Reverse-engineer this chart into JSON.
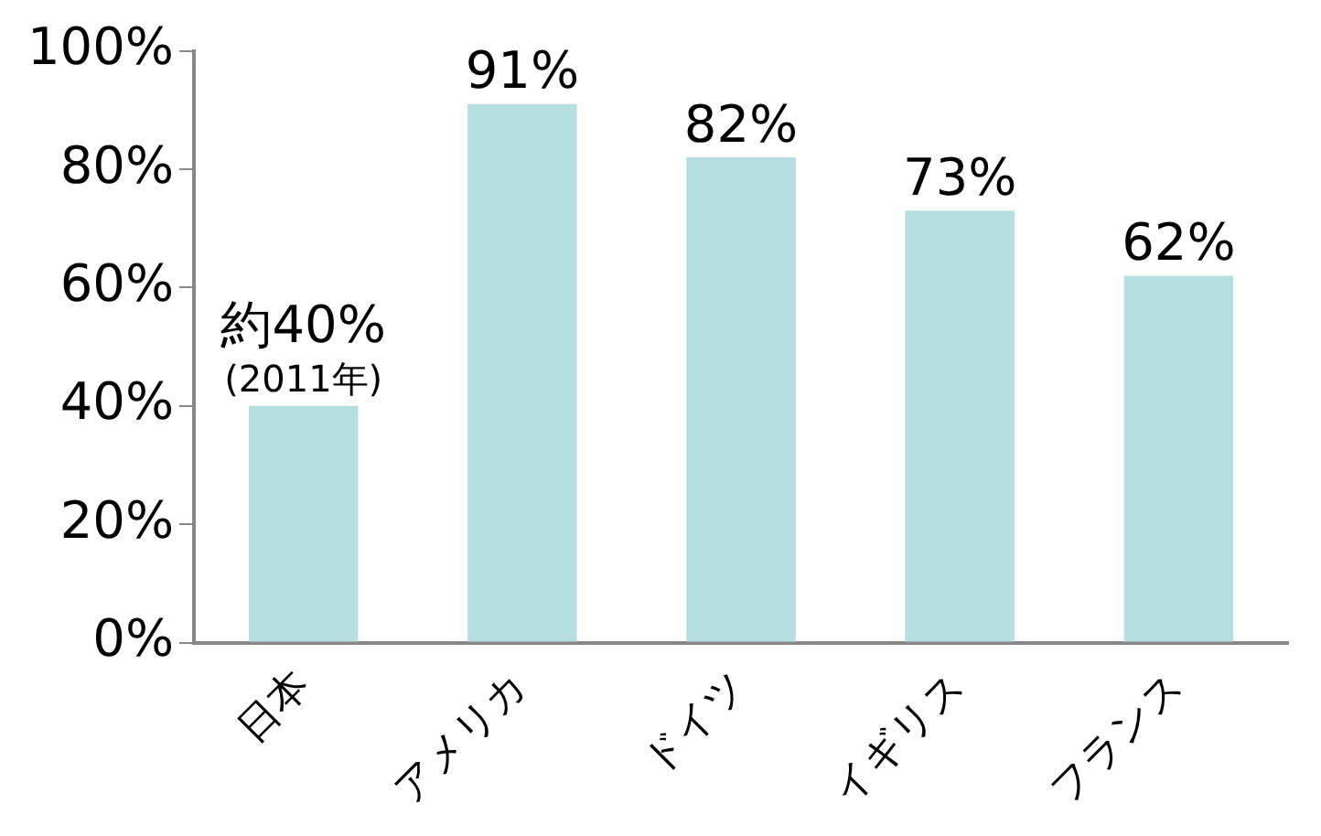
{
  "chart_data": {
    "type": "bar",
    "categories": [
      "日本",
      "アメリカ",
      "ドイツ",
      "イギリス",
      "フランス"
    ],
    "values": [
      40,
      91,
      82,
      73,
      62
    ],
    "value_labels": [
      "約40%",
      "91%",
      "82%",
      "73%",
      "62%"
    ],
    "annotations": [
      {
        "text": "(2011年)",
        "x": "日本",
        "y": 40
      }
    ],
    "color": "#b7dfe1",
    "ylim": [
      0,
      100
    ],
    "yticks": [
      {
        "value": 0,
        "label": "0%"
      },
      {
        "value": 20,
        "label": "20%"
      },
      {
        "value": 40,
        "label": "40%"
      },
      {
        "value": 60,
        "label": "60%"
      },
      {
        "value": 80,
        "label": "80%"
      },
      {
        "value": 100,
        "label": "100%"
      }
    ],
    "grid": false,
    "legend": false
  }
}
